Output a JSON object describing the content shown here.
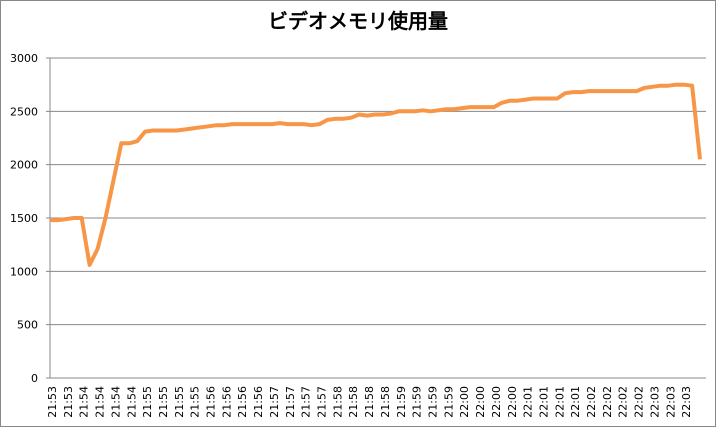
{
  "chart_data": {
    "type": "line",
    "title": "ビデオメモリ使用量",
    "categories": [
      "21:53",
      null,
      "21:53",
      null,
      "21:54",
      null,
      "21:54",
      null,
      "21:54",
      null,
      "21:54",
      null,
      "21:55",
      null,
      "21:55",
      null,
      "21:55",
      null,
      "21:55",
      null,
      "21:56",
      null,
      "21:56",
      null,
      "21:56",
      null,
      "21:56",
      null,
      "21:57",
      null,
      "21:57",
      null,
      "21:57",
      null,
      "21:57",
      null,
      "21:58",
      null,
      "21:58",
      null,
      "21:58",
      null,
      "21:58",
      null,
      "21:59",
      null,
      "21:59",
      null,
      "21:59",
      null,
      "21:59",
      null,
      "22:00",
      null,
      "22:00",
      null,
      "22:00",
      null,
      "22:00",
      null,
      "22:01",
      null,
      "22:01",
      null,
      "22:01",
      null,
      "22:01",
      null,
      "22:02",
      null,
      "22:02",
      null,
      "22:02",
      null,
      "22:02",
      null,
      "22:03",
      null,
      "22:03",
      null,
      "22:03",
      null,
      null
    ],
    "series": [
      {
        "color": "#f79646",
        "values": [
          1480,
          1480,
          1490,
          1500,
          1500,
          1060,
          1210,
          1500,
          1850,
          2200,
          2200,
          2220,
          2310,
          2320,
          2320,
          2320,
          2320,
          2330,
          2340,
          2350,
          2360,
          2370,
          2370,
          2380,
          2380,
          2380,
          2380,
          2380,
          2380,
          2390,
          2380,
          2380,
          2380,
          2370,
          2380,
          2420,
          2430,
          2430,
          2440,
          2470,
          2460,
          2470,
          2470,
          2480,
          2500,
          2500,
          2500,
          2510,
          2500,
          2510,
          2520,
          2520,
          2530,
          2540,
          2540,
          2540,
          2540,
          2580,
          2600,
          2600,
          2610,
          2620,
          2620,
          2620,
          2620,
          2670,
          2680,
          2680,
          2690,
          2690,
          2690,
          2690,
          2690,
          2690,
          2690,
          2720,
          2730,
          2740,
          2740,
          2750,
          2750,
          2740,
          2050
        ]
      }
    ],
    "ylim": [
      0,
      3000
    ],
    "yticks": [
      0,
      500,
      1000,
      1500,
      2000,
      2500,
      3000
    ],
    "grid": true
  }
}
